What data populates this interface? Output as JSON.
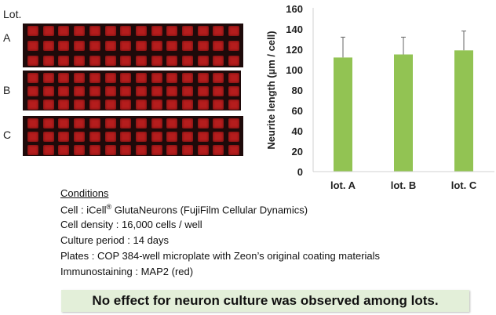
{
  "images": {
    "lot_header": "Lot.",
    "plates": [
      {
        "label": "A"
      },
      {
        "label": "B"
      },
      {
        "label": "C"
      }
    ],
    "rows": 3,
    "columns": 14,
    "well_color": "#b51d1d"
  },
  "chart_data": {
    "type": "bar",
    "categories": [
      "lot. A",
      "lot. B",
      "lot. C"
    ],
    "values": [
      112,
      115,
      119
    ],
    "error_upper": [
      132,
      132,
      138
    ],
    "ylabel": "Neurite length (µm / cell)",
    "xlabel": "",
    "ylim": [
      0,
      160
    ],
    "yticks": [
      0,
      20,
      40,
      60,
      80,
      100,
      120,
      140,
      160
    ],
    "bar_color": "#92c353",
    "grid": false
  },
  "conditions": {
    "title": "Conditions",
    "cell_prefix": "Cell : iCell",
    "cell_reg": "®",
    "cell_suffix": " GlutaNeurons (FujiFilm Cellular Dynamics)",
    "density": "Cell density : 16,000 cells / well",
    "period": "Culture period : 14 days",
    "plates": "Plates : COP 384-well microplate with Zeon’s original coating materials",
    "staining": "Immunostaining : MAP2 (red)"
  },
  "conclusion": "No effect for neuron culture was observed among lots."
}
